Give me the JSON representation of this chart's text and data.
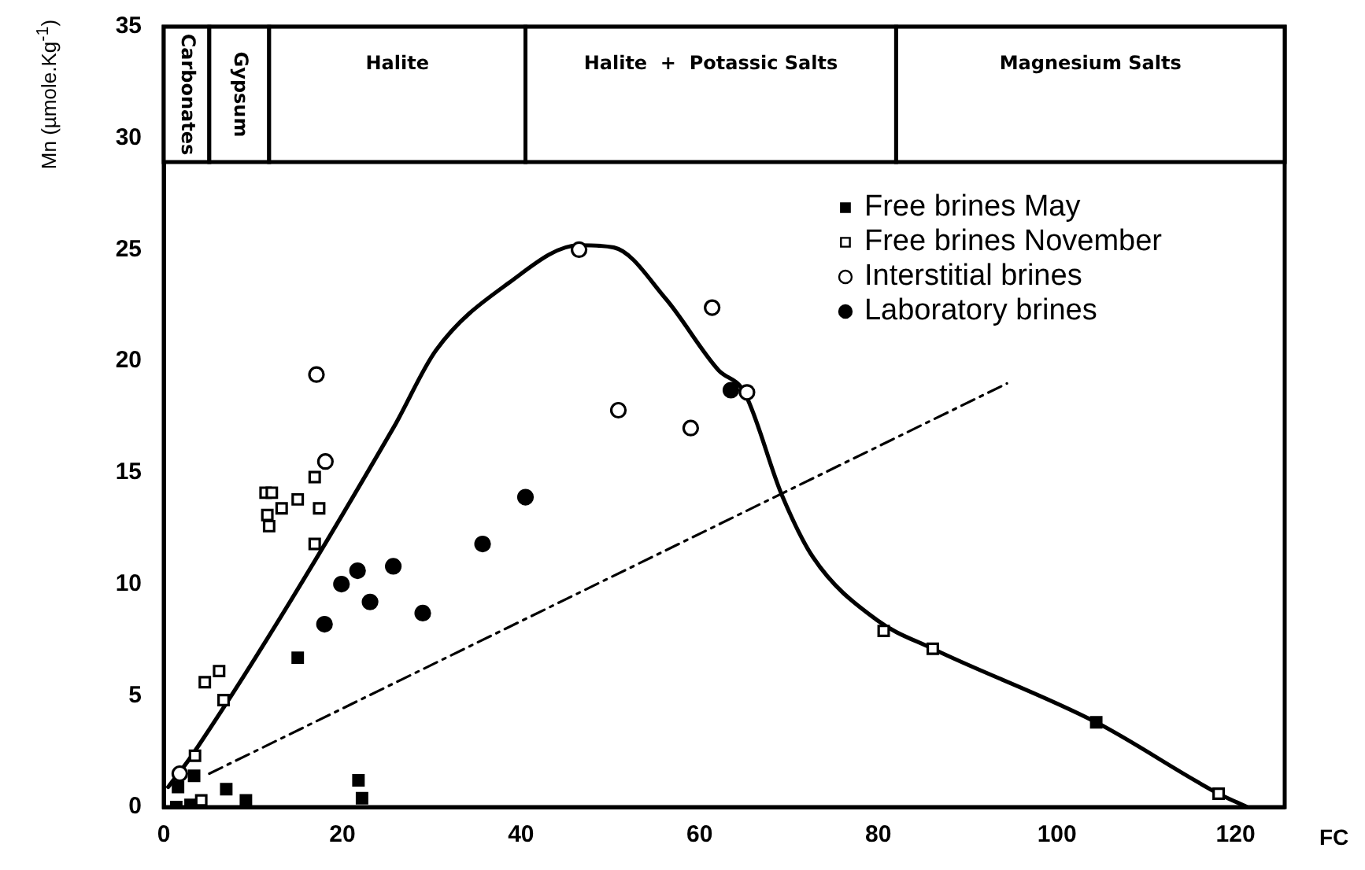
{
  "chart_data": {
    "type": "scatter",
    "xlabel": "FC",
    "ylabel": "Mn (µmole.Kg$^{-1}$)",
    "xlim": [
      0,
      125.5
    ],
    "ylim": [
      0,
      35
    ],
    "xticks": [
      0,
      20,
      40,
      60,
      80,
      100,
      120
    ],
    "yticks": [
      0,
      5,
      10,
      15,
      20,
      25,
      30,
      35
    ],
    "grid": false,
    "legend": "top right",
    "bands": [
      {
        "axis": "x",
        "from": 0,
        "to": 5.1,
        "label": "Carbonates"
      },
      {
        "axis": "x",
        "from": 5.1,
        "to": 11.8,
        "label": "Gypsum"
      },
      {
        "axis": "x",
        "from": 11.8,
        "to": 40.5,
        "label": "Halite"
      },
      {
        "axis": "x",
        "from": 40.5,
        "to": 82,
        "label": "Halite  +  Potassic Salts"
      },
      {
        "axis": "x",
        "from": 82,
        "to": 125.5,
        "label": "Magnesium Salts"
      }
    ],
    "series": [
      {
        "name": "Free brines May",
        "marker": "square",
        "color": "#000000",
        "x": [
          15.0,
          1.6,
          3.4,
          7.0,
          9.2,
          21.8,
          22.2,
          1.4,
          3.0,
          104.4
        ],
        "values": [
          6.7,
          0.9,
          1.4,
          0.8,
          0.3,
          1.2,
          0.4,
          0,
          0.1,
          3.8
        ]
      },
      {
        "name": "Free brines November",
        "marker": "square",
        "color": "#ffffff",
        "x": [
          3.5,
          4.2,
          4.6,
          6.2,
          6.7,
          11.4,
          12.1,
          11.6,
          11.8,
          13.2,
          15.0,
          16.9,
          17.4,
          16.9,
          80.6,
          86.1,
          118.1
        ],
        "values": [
          2.3,
          0.3,
          5.6,
          6.1,
          4.8,
          14.1,
          14.1,
          13.1,
          12.6,
          13.4,
          13.8,
          14.8,
          13.4,
          11.8,
          7.9,
          7.1,
          0.6
        ]
      },
      {
        "name": "Interstitial brines",
        "marker": "circle",
        "color": "#ffffff",
        "x": [
          17.1,
          46.5,
          61.4,
          50.9,
          59.0,
          65.3,
          18.1,
          1.8
        ],
        "values": [
          19.4,
          25.0,
          22.4,
          17.8,
          17.0,
          18.6,
          15.5,
          1.5
        ]
      },
      {
        "name": "Laboratory brines",
        "marker": "circle",
        "color": "#000000",
        "x": [
          18.0,
          19.9,
          21.7,
          23.1,
          25.7,
          29.0,
          35.7,
          40.5,
          63.5
        ],
        "values": [
          8.2,
          10.0,
          10.6,
          9.2,
          10.8,
          8.7,
          11.8,
          13.9,
          18.7
        ]
      },
      {
        "type": "line",
        "marker": "none",
        "line_style": "solid",
        "color": "#000000",
        "x": [
          0.5,
          3.3,
          25.7,
          30.5,
          38.6,
          46.5,
          50.4,
          56.2,
          62.1,
          65.0,
          69.2,
          72.7,
          79.8,
          86.1,
          104.4,
          118.1,
          121.3
        ],
        "values": [
          0.9,
          2.4,
          17.0,
          20.5,
          23.5,
          25.2,
          25.1,
          22.8,
          19.6,
          18.6,
          14.0,
          11.2,
          8.4,
          7.1,
          3.8,
          0.6,
          0
        ]
      },
      {
        "type": "line",
        "marker": "none",
        "line_style": "dashed",
        "color": "#000000",
        "x": [
          5.1,
          94.4
        ],
        "values": [
          1.5,
          19.0
        ]
      }
    ]
  }
}
